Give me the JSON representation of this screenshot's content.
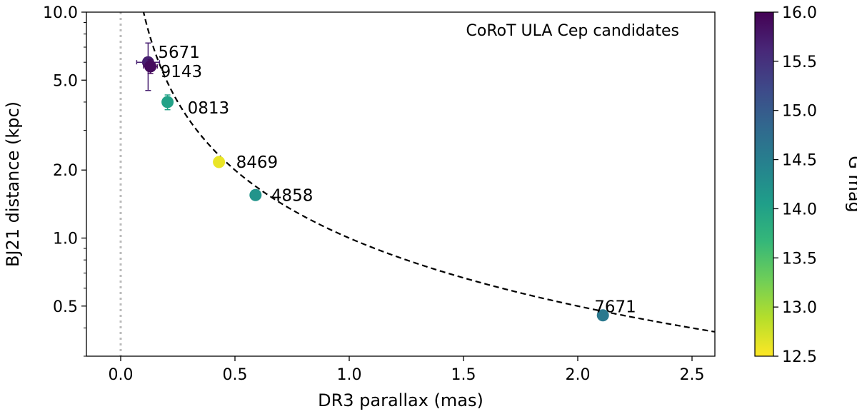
{
  "chart_data": {
    "type": "scatter",
    "annotation": "CoRoT ULA Cep candidates",
    "xlabel": "DR3 parallax (mas)",
    "ylabel": "BJ21 distance (kpc)",
    "xlim": [
      -0.15,
      2.6
    ],
    "ylim": [
      0.3,
      10.0
    ],
    "yscale": "log",
    "xticks": [
      0.0,
      0.5,
      1.0,
      1.5,
      2.0,
      2.5
    ],
    "xtick_labels": [
      "0.0",
      "0.5",
      "1.0",
      "1.5",
      "2.0",
      "2.5"
    ],
    "yticks": [
      0.5,
      1.0,
      2.0,
      5.0,
      10.0
    ],
    "ytick_labels": [
      "0.5",
      "1.0",
      "2.0",
      "5.0",
      "10.0"
    ],
    "grid": false,
    "reference_curve": {
      "description": "distance = 1 / parallax",
      "style": "dashed",
      "color": "#000000"
    },
    "zero_line": {
      "x": 0.0,
      "style": "dotted",
      "color": "#bbbbbb"
    },
    "colorbar": {
      "label": "G mag",
      "range": [
        12.5,
        16.0
      ],
      "ticks": [
        12.5,
        13.0,
        13.5,
        14.0,
        14.5,
        15.0,
        15.5,
        16.0
      ],
      "tick_labels": [
        "12.5",
        "13.0",
        "13.5",
        "14.0",
        "14.5",
        "15.0",
        "15.5",
        "16.0"
      ],
      "colormap": "viridis",
      "cmap_stops": [
        "#fde725",
        "#b5de2b",
        "#6ece58",
        "#35b779",
        "#1f9e89",
        "#26828e",
        "#31688e",
        "#3e4989",
        "#482878",
        "#440154"
      ]
    },
    "points": [
      {
        "label": "5671",
        "x": 0.12,
        "y": 6.0,
        "g": 15.7,
        "xerr": 0.05,
        "yerr_low": 1.5,
        "yerr_high": 1.3
      },
      {
        "label": "9143",
        "x": 0.13,
        "y": 5.75,
        "g": 15.9,
        "xerr": 0.03,
        "yerr_low": 0.4,
        "yerr_high": 0.4
      },
      {
        "label": "0813",
        "x": 0.205,
        "y": 4.0,
        "g": 14.0,
        "xerr": 0.0,
        "yerr_low": 0.3,
        "yerr_high": 0.3
      },
      {
        "label": "8469",
        "x": 0.43,
        "y": 2.17,
        "g": 12.6,
        "xerr": 0.02,
        "yerr_low": 0.1,
        "yerr_high": 0.1
      },
      {
        "label": "4858",
        "x": 0.59,
        "y": 1.55,
        "g": 14.2,
        "xerr": 0.0,
        "yerr_low": 0.0,
        "yerr_high": 0.0
      },
      {
        "label": "7671",
        "x": 2.11,
        "y": 0.455,
        "g": 14.6,
        "xerr": 0.0,
        "yerr_low": 0.0,
        "yerr_high": 0.0
      }
    ]
  }
}
